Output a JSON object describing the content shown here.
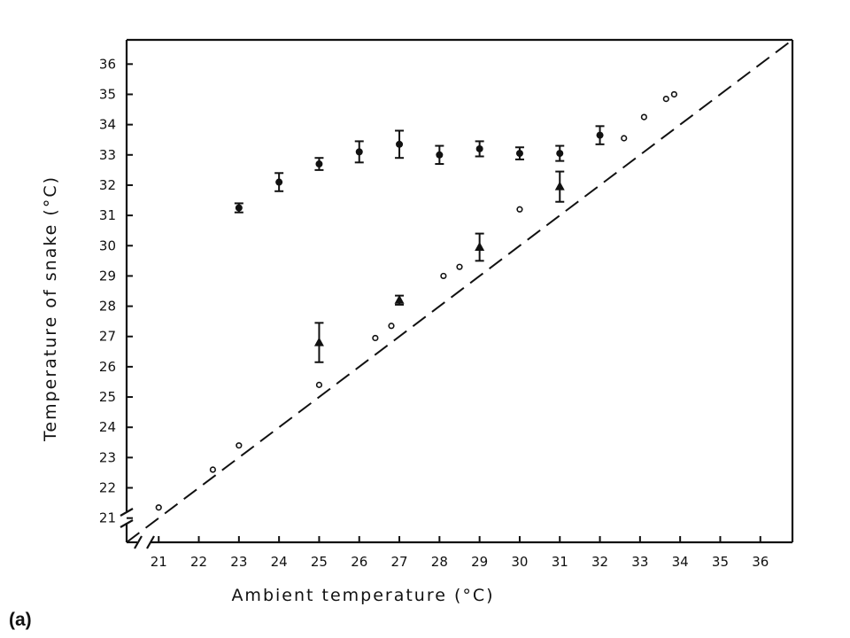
{
  "panel_label": "(a)",
  "chart_data": {
    "type": "scatter",
    "title": "",
    "xlabel": "Ambient temperature (°C)",
    "ylabel": "Temperature of snake (°C)",
    "xlim": [
      20.2,
      36.8
    ],
    "ylim": [
      20.2,
      36.8
    ],
    "x_tick_labels": [
      "21",
      "22",
      "23",
      "24",
      "25",
      "26",
      "27",
      "28",
      "29",
      "30",
      "31",
      "32",
      "33",
      "34",
      "35",
      "36"
    ],
    "y_tick_labels": [
      "21",
      "22",
      "23",
      "24",
      "25",
      "26",
      "27",
      "28",
      "29",
      "30",
      "31",
      "32",
      "33",
      "34",
      "35",
      "36"
    ],
    "x_tick_values": [
      21,
      22,
      23,
      24,
      25,
      26,
      27,
      28,
      29,
      30,
      31,
      32,
      33,
      34,
      35,
      36
    ],
    "y_tick_values": [
      21,
      22,
      23,
      24,
      25,
      26,
      27,
      28,
      29,
      30,
      31,
      32,
      33,
      34,
      35,
      36
    ],
    "axis_breaks": true,
    "grid": false,
    "reference_line": {
      "style": "dashed",
      "from": [
        20.2,
        20.2
      ],
      "to": [
        36.8,
        36.8
      ]
    },
    "series": [
      {
        "marker": "filled-circle",
        "error_bars": true,
        "points": [
          {
            "x": 23,
            "y": 31.25,
            "err": 0.15
          },
          {
            "x": 24,
            "y": 32.1,
            "err": 0.3
          },
          {
            "x": 25,
            "y": 32.7,
            "err": 0.2
          },
          {
            "x": 26,
            "y": 33.1,
            "err": 0.35
          },
          {
            "x": 27,
            "y": 33.35,
            "err": 0.45
          },
          {
            "x": 28,
            "y": 33.0,
            "err": 0.3
          },
          {
            "x": 29,
            "y": 33.2,
            "err": 0.25
          },
          {
            "x": 30,
            "y": 33.05,
            "err": 0.2
          },
          {
            "x": 31,
            "y": 33.05,
            "err": 0.25
          },
          {
            "x": 32,
            "y": 33.65,
            "err": 0.3
          }
        ]
      },
      {
        "marker": "filled-triangle",
        "error_bars": true,
        "points": [
          {
            "x": 25,
            "y": 26.8,
            "err": 0.65
          },
          {
            "x": 27,
            "y": 28.2,
            "err": 0.15
          },
          {
            "x": 29,
            "y": 29.95,
            "err": 0.45
          },
          {
            "x": 31,
            "y": 31.95,
            "err": 0.5
          }
        ]
      },
      {
        "marker": "open-circle",
        "error_bars": false,
        "points": [
          {
            "x": 21.0,
            "y": 21.35
          },
          {
            "x": 22.35,
            "y": 22.6
          },
          {
            "x": 23.0,
            "y": 23.4
          },
          {
            "x": 25.0,
            "y": 25.4
          },
          {
            "x": 26.4,
            "y": 26.95
          },
          {
            "x": 26.8,
            "y": 27.35
          },
          {
            "x": 28.1,
            "y": 29.0
          },
          {
            "x": 28.5,
            "y": 29.3
          },
          {
            "x": 30.0,
            "y": 31.2
          },
          {
            "x": 32.6,
            "y": 33.55
          },
          {
            "x": 33.1,
            "y": 34.25
          },
          {
            "x": 33.65,
            "y": 34.85
          },
          {
            "x": 33.85,
            "y": 35.0
          }
        ]
      }
    ]
  }
}
